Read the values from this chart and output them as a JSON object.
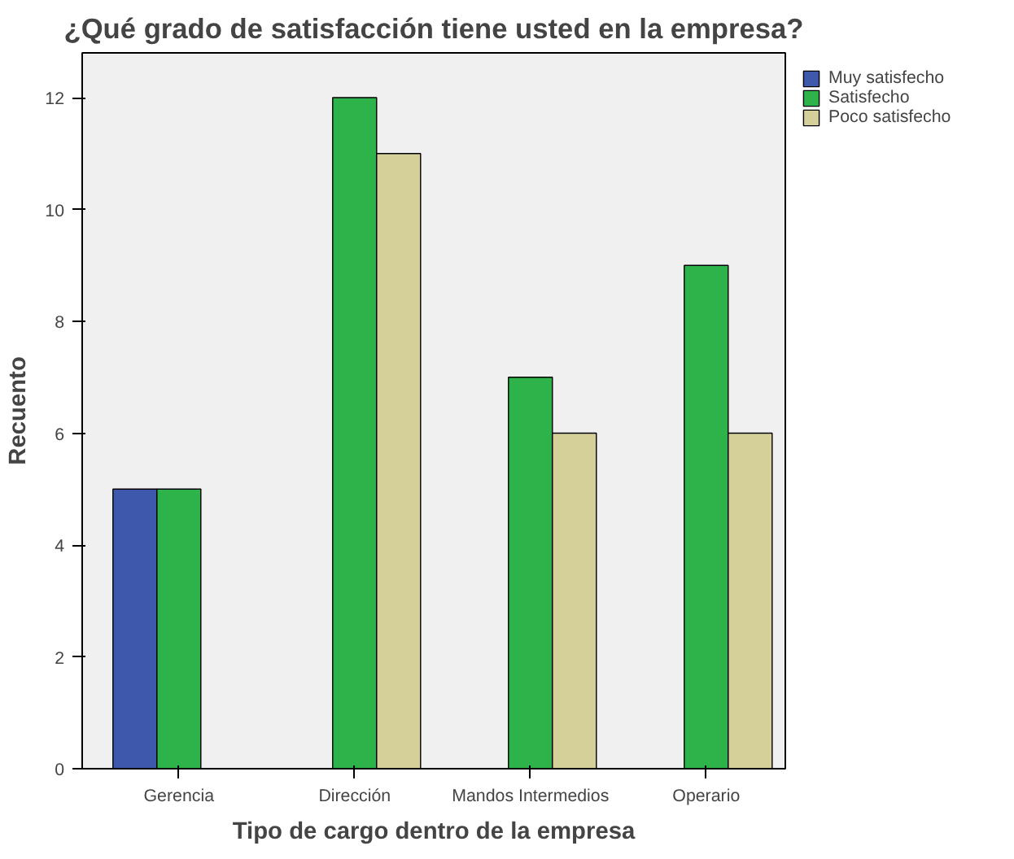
{
  "chart_data": {
    "type": "bar",
    "title": "¿Qué grado de satisfacción tiene usted en la empresa?",
    "xlabel": "Tipo de cargo dentro de la empresa",
    "ylabel": "Recuento",
    "categories": [
      "Gerencia",
      "Dirección",
      "Mandos Intermedios",
      "Operario"
    ],
    "series": [
      {
        "name": "Muy satisfecho",
        "color": "#3e58ac",
        "values": [
          5,
          null,
          null,
          null
        ]
      },
      {
        "name": "Satisfecho",
        "color": "#2db34a",
        "values": [
          5,
          12,
          7,
          9
        ]
      },
      {
        "name": "Poco satisfecho",
        "color": "#d5d09a",
        "values": [
          null,
          11,
          6,
          6
        ]
      }
    ],
    "ylim": [
      0,
      12.8
    ],
    "yticks": [
      0,
      2,
      4,
      6,
      8,
      10,
      12
    ],
    "grid": false,
    "legend": "top right"
  }
}
